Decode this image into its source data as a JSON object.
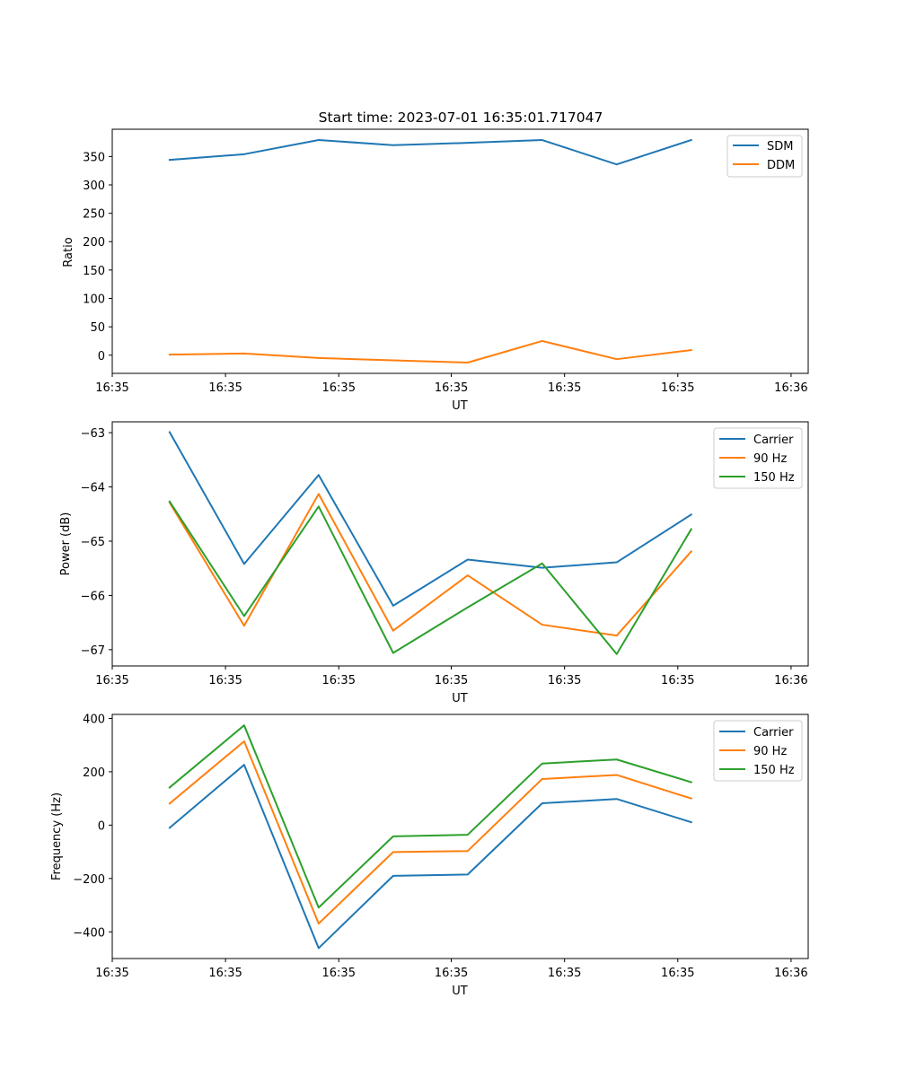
{
  "chart_data": [
    {
      "type": "line",
      "title": "Start time: 2023-07-01 16:35:01.717047",
      "xlabel": "UT",
      "ylabel": "Ratio",
      "xlim": [
        -0.77,
        8.57
      ],
      "ylim": [
        -32,
        398
      ],
      "x": [
        0,
        1,
        2,
        3,
        4,
        5,
        6,
        7
      ],
      "xticks": [
        -0.77,
        0.75,
        2.27,
        3.78,
        5.3,
        6.82,
        8.34
      ],
      "xticklabels": [
        "16:35",
        "16:35",
        "16:35",
        "16:35",
        "16:35",
        "16:35",
        "16:36"
      ],
      "yticks": [
        0,
        50,
        100,
        150,
        200,
        250,
        300,
        350
      ],
      "yticklabels": [
        "0",
        "50",
        "100",
        "150",
        "200",
        "250",
        "300",
        "350"
      ],
      "legend_location": "top-right",
      "series": [
        {
          "name": "SDM",
          "color": "#1f77b4",
          "values": [
            344,
            354,
            379,
            370,
            374,
            379,
            336,
            379
          ]
        },
        {
          "name": "DDM",
          "color": "#ff7f0e",
          "values": [
            1,
            3,
            -5,
            -9,
            -13,
            25,
            -7,
            9
          ]
        }
      ]
    },
    {
      "type": "line",
      "title": "",
      "xlabel": "UT",
      "ylabel": "Power (dB)",
      "xlim": [
        -0.77,
        8.57
      ],
      "ylim": [
        -67.3,
        -62.8
      ],
      "x": [
        0,
        1,
        2,
        3,
        4,
        5,
        6,
        7
      ],
      "xticks": [
        -0.77,
        0.75,
        2.27,
        3.78,
        5.3,
        6.82,
        8.34
      ],
      "xticklabels": [
        "16:35",
        "16:35",
        "16:35",
        "16:35",
        "16:35",
        "16:35",
        "16:36"
      ],
      "yticks": [
        -67,
        -66,
        -65,
        -64,
        -63
      ],
      "yticklabels": [
        "−67",
        "−66",
        "−65",
        "−64",
        "−63"
      ],
      "legend_location": "top-right",
      "series": [
        {
          "name": "Carrier",
          "color": "#1f77b4",
          "values": [
            -62.99,
            -65.42,
            -63.78,
            -66.19,
            -65.34,
            -65.49,
            -65.39,
            -64.51
          ]
        },
        {
          "name": "90 Hz",
          "color": "#ff7f0e",
          "values": [
            -64.29,
            -66.56,
            -64.13,
            -66.65,
            -65.63,
            -66.54,
            -66.74,
            -65.19
          ]
        },
        {
          "name": "150 Hz",
          "color": "#2ca02c",
          "values": [
            -64.27,
            -66.38,
            -64.36,
            -67.06,
            -66.22,
            -65.41,
            -67.08,
            -64.78
          ]
        }
      ]
    },
    {
      "type": "line",
      "title": "",
      "xlabel": "UT",
      "ylabel": "Frequency (Hz)",
      "xlim": [
        -0.77,
        8.57
      ],
      "ylim": [
        -500,
        415
      ],
      "x": [
        0,
        1,
        2,
        3,
        4,
        5,
        6,
        7
      ],
      "xticks": [
        -0.77,
        0.75,
        2.27,
        3.78,
        5.3,
        6.82,
        8.34
      ],
      "xticklabels": [
        "16:35",
        "16:35",
        "16:35",
        "16:35",
        "16:35",
        "16:35",
        "16:36"
      ],
      "yticks": [
        -400,
        -200,
        0,
        200,
        400
      ],
      "yticklabels": [
        "−400",
        "−200",
        "0",
        "200",
        "400"
      ],
      "legend_location": "top-right",
      "series": [
        {
          "name": "Carrier",
          "color": "#1f77b4",
          "values": [
            -10,
            226,
            -461,
            -190,
            -185,
            82,
            98,
            11
          ]
        },
        {
          "name": "90 Hz",
          "color": "#ff7f0e",
          "values": [
            81,
            314,
            -369,
            -101,
            -97,
            173,
            188,
            100
          ]
        },
        {
          "name": "150 Hz",
          "color": "#2ca02c",
          "values": [
            141,
            374,
            -309,
            -42,
            -36,
            231,
            246,
            161
          ]
        }
      ]
    }
  ]
}
